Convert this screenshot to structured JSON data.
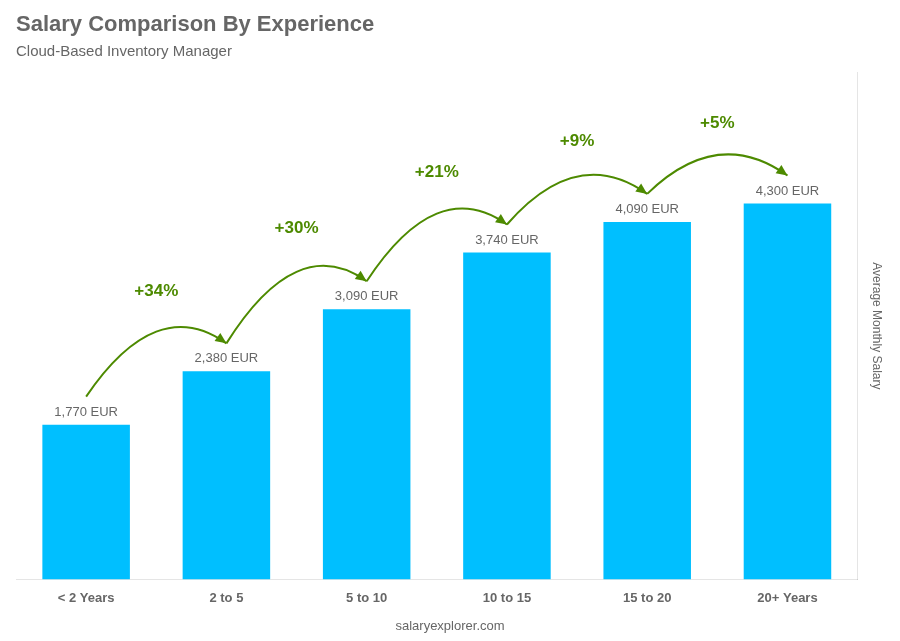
{
  "chart_data": {
    "type": "bar",
    "title": "Salary Comparison By Experience",
    "subtitle": "Cloud-Based Inventory Manager",
    "categories": [
      "< 2 Years",
      "2 to 5",
      "5 to 10",
      "10 to 15",
      "15 to 20",
      "20+ Years"
    ],
    "values": [
      1770,
      2380,
      3090,
      3740,
      4090,
      4300
    ],
    "value_labels": [
      "1,770 EUR",
      "2,380 EUR",
      "3,090 EUR",
      "3,740 EUR",
      "4,090 EUR",
      "4,300 EUR"
    ],
    "data_labels": true,
    "color": "#00bfff",
    "ylabel": "Average Monthly Salary",
    "ylim": [
      0,
      5800
    ],
    "grid": false,
    "tick_labels": "x",
    "annotations": [
      "+34%",
      "+30%",
      "+21%",
      "+9%",
      "+5%"
    ],
    "footer": "salaryexplorer.com"
  }
}
